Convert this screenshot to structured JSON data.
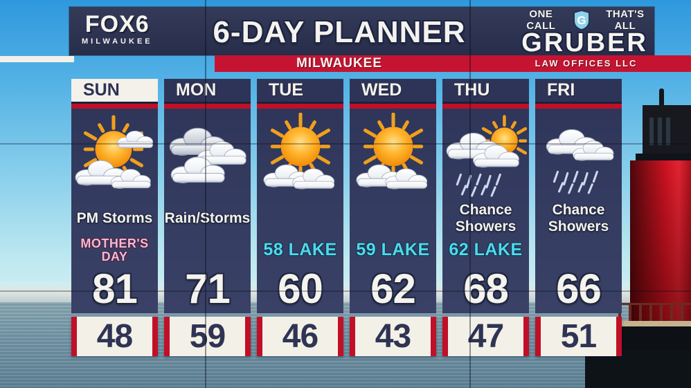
{
  "station": {
    "name": "FOX6",
    "sub": "MILWAUKEE"
  },
  "header": {
    "title": "6-DAY PLANNER",
    "subtitle": "MILWAUKEE"
  },
  "sponsor": {
    "tagline_left": "ONE CALL",
    "monogram": "G",
    "tagline_right": "THAT'S ALL",
    "name": "GRUBER",
    "sub": "LAW OFFICES LLC"
  },
  "colors": {
    "accent_red": "#c41432",
    "banner_navy": "#2a3050",
    "panel_navy": "#353c60",
    "lake_text": "#4fd9ec",
    "holiday_text": "#f4b8d4",
    "lighthouse_red": "#cf1322"
  },
  "days": [
    {
      "label": "SUN",
      "highlight": true,
      "icon": "sun-clouds",
      "condition": "PM Storms",
      "special": "MOTHER'S DAY",
      "special_type": "holiday",
      "high": "81",
      "low": "48"
    },
    {
      "label": "MON",
      "highlight": false,
      "icon": "clouds",
      "condition": "Rain/Storms",
      "special": "",
      "special_type": "",
      "high": "71",
      "low": "59"
    },
    {
      "label": "TUE",
      "highlight": false,
      "icon": "mostly-sunny",
      "condition": "",
      "special": "58 LAKE",
      "special_type": "lake",
      "high": "60",
      "low": "46"
    },
    {
      "label": "WED",
      "highlight": false,
      "icon": "mostly-sunny",
      "condition": "",
      "special": "59 LAKE",
      "special_type": "lake",
      "high": "62",
      "low": "43"
    },
    {
      "label": "THU",
      "highlight": false,
      "icon": "sun-rain",
      "condition": "Chance Showers",
      "special": "62 LAKE",
      "special_type": "lake",
      "high": "68",
      "low": "47"
    },
    {
      "label": "FRI",
      "highlight": false,
      "icon": "rain",
      "condition": "Chance Showers",
      "special": "",
      "special_type": "",
      "high": "66",
      "low": "51"
    }
  ]
}
